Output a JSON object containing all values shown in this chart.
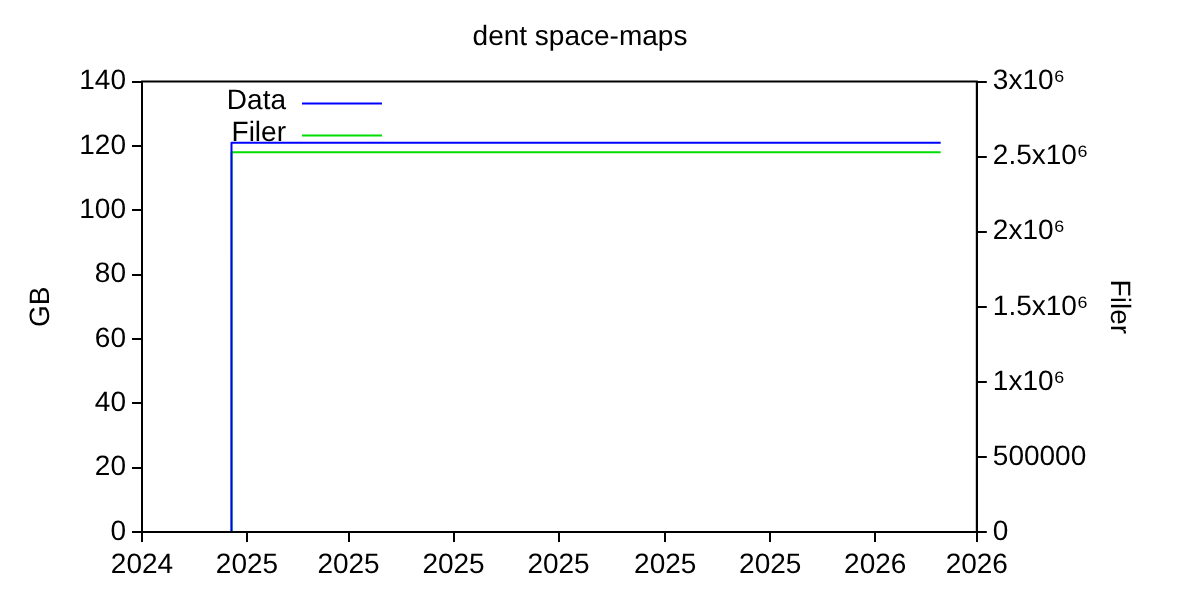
{
  "chart_data": {
    "type": "line",
    "title": "dent space-maps",
    "ylabel": "GB",
    "y2label": "Filer",
    "series": [
      {
        "name": "Data",
        "color": "#0000ff",
        "x": [
          "2024-12-23",
          "2024-12-23",
          "2026-02-08"
        ],
        "values": [
          0,
          121,
          121
        ]
      },
      {
        "name": "Filer",
        "color": "#00dd00",
        "axis": "y2",
        "x": [
          "2024-12-23",
          "2024-12-23",
          "2026-02-08"
        ],
        "values": [
          0,
          2530000,
          2530000
        ]
      }
    ],
    "xlim": [
      "2024-11-01",
      "2026-03-01"
    ],
    "xticks": [
      {
        "value": "2024-11-01",
        "label": "2024"
      },
      {
        "value": "2025-01-01",
        "label": "2025"
      },
      {
        "value": "2025-03-01",
        "label": "2025"
      },
      {
        "value": "2025-05-01",
        "label": "2025"
      },
      {
        "value": "2025-07-01",
        "label": "2025"
      },
      {
        "value": "2025-09-01",
        "label": "2025"
      },
      {
        "value": "2025-11-01",
        "label": "2025"
      },
      {
        "value": "2026-01-01",
        "label": "2026"
      },
      {
        "value": "2026-03-01",
        "label": "2026"
      }
    ],
    "ylim": [
      0,
      140
    ],
    "yticks": [
      0,
      20,
      40,
      60,
      80,
      100,
      120,
      140
    ],
    "y2lim": [
      0,
      3000000
    ],
    "y2ticks": [
      0,
      500000,
      {
        "value": 1000000,
        "label": "1x10⁶"
      },
      {
        "value": 1500000,
        "label": "1.5x10⁶"
      },
      {
        "value": 2000000,
        "label": "2x10⁶"
      },
      {
        "value": 2500000,
        "label": "2.5x10⁶"
      },
      {
        "value": 3000000,
        "label": "3x10⁶"
      }
    ],
    "grid": false,
    "legend": "top left",
    "marker": "none",
    "line_style": "solid"
  }
}
